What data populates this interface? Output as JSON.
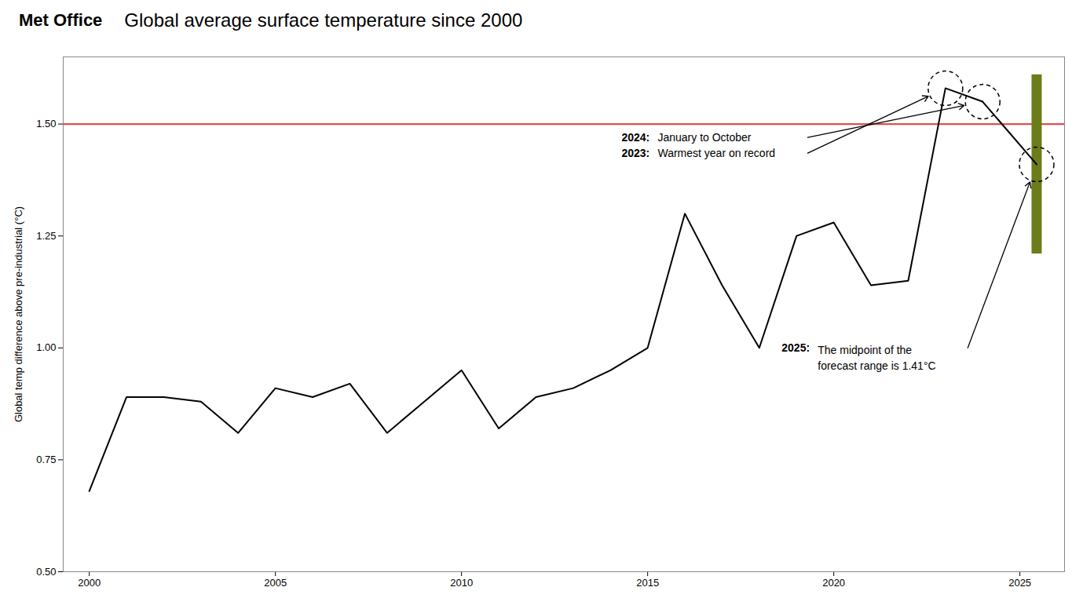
{
  "chart_data": {
    "type": "line",
    "title": "Global average surface temperature since 2000",
    "brand": "Met Office",
    "ylabel": "Global temp difference above pre-industrial (°C)",
    "x": [
      2000,
      2001,
      2002,
      2003,
      2004,
      2005,
      2006,
      2007,
      2008,
      2009,
      2010,
      2011,
      2012,
      2013,
      2014,
      2015,
      2016,
      2017,
      2018,
      2019,
      2020,
      2021,
      2022,
      2023,
      2024
    ],
    "values": [
      0.68,
      0.89,
      0.89,
      0.88,
      0.81,
      0.91,
      0.89,
      0.92,
      0.81,
      0.88,
      0.95,
      0.82,
      0.89,
      0.91,
      0.95,
      1.0,
      1.3,
      1.14,
      1.0,
      1.25,
      1.28,
      1.14,
      1.15,
      1.58,
      1.55
    ],
    "reference_line": {
      "y": 1.5,
      "color": "#d9534f"
    },
    "forecast": {
      "x": 2025.45,
      "low": 1.21,
      "mid": 1.41,
      "high": 1.61,
      "color": "#6b7c1a"
    },
    "annotations": [
      {
        "label": "2024:",
        "text": "January to October"
      },
      {
        "label": "2023:",
        "text": "Warmest year on record"
      },
      {
        "label": "2025:",
        "text": "The midpoint of the\nforecast range is 1.41°C"
      }
    ],
    "xlim": [
      1999.3,
      2026.2
    ],
    "ylim": [
      0.5,
      1.65
    ],
    "xticks": [
      2000,
      2005,
      2010,
      2015,
      2020,
      2025
    ],
    "yticks": [
      {
        "value": 0.5,
        "label": "0.50"
      },
      {
        "value": 0.75,
        "label": "0.75"
      },
      {
        "value": 1.0,
        "label": "1.00"
      },
      {
        "value": 1.25,
        "label": "1.25"
      },
      {
        "value": 1.5,
        "label": "1.50"
      }
    ],
    "grid": false
  }
}
